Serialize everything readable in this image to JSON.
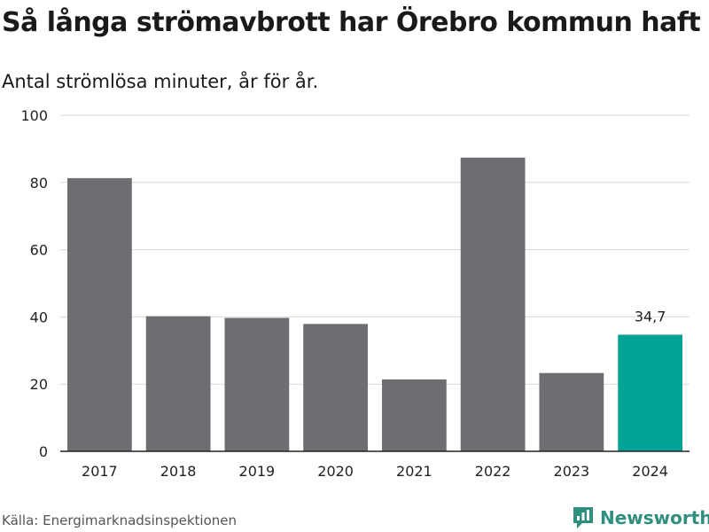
{
  "title": "Så långa strömavbrott har Örebro kommun haft",
  "subtitle": "Antal strömlösa minuter, år för år.",
  "source": "Källa: Energimarknadsinspektionen",
  "brand": {
    "name": "Newsworthy",
    "icon": "newsworthy-logo-icon",
    "color": "#2f8f7e"
  },
  "colors": {
    "bar": "#6e6d72",
    "highlight": "#00a396",
    "grid": "#d9d9d9",
    "axis": "#222222"
  },
  "chart_data": {
    "type": "bar",
    "title": "Så långa strömavbrott har Örebro kommun haft",
    "subtitle": "Antal strömlösa minuter, år för år.",
    "xlabel": "",
    "ylabel": "",
    "categories": [
      "2017",
      "2018",
      "2019",
      "2020",
      "2021",
      "2022",
      "2023",
      "2024"
    ],
    "values": [
      81.3,
      40.2,
      39.7,
      37.9,
      21.4,
      87.4,
      23.3,
      34.7
    ],
    "highlight_index": 7,
    "data_labels": [
      "",
      "",
      "",
      "",
      "",
      "",
      "",
      "34,7"
    ],
    "ylim": [
      0,
      100
    ],
    "yticks": [
      0,
      20,
      40,
      60,
      80,
      100
    ],
    "grid": true
  }
}
